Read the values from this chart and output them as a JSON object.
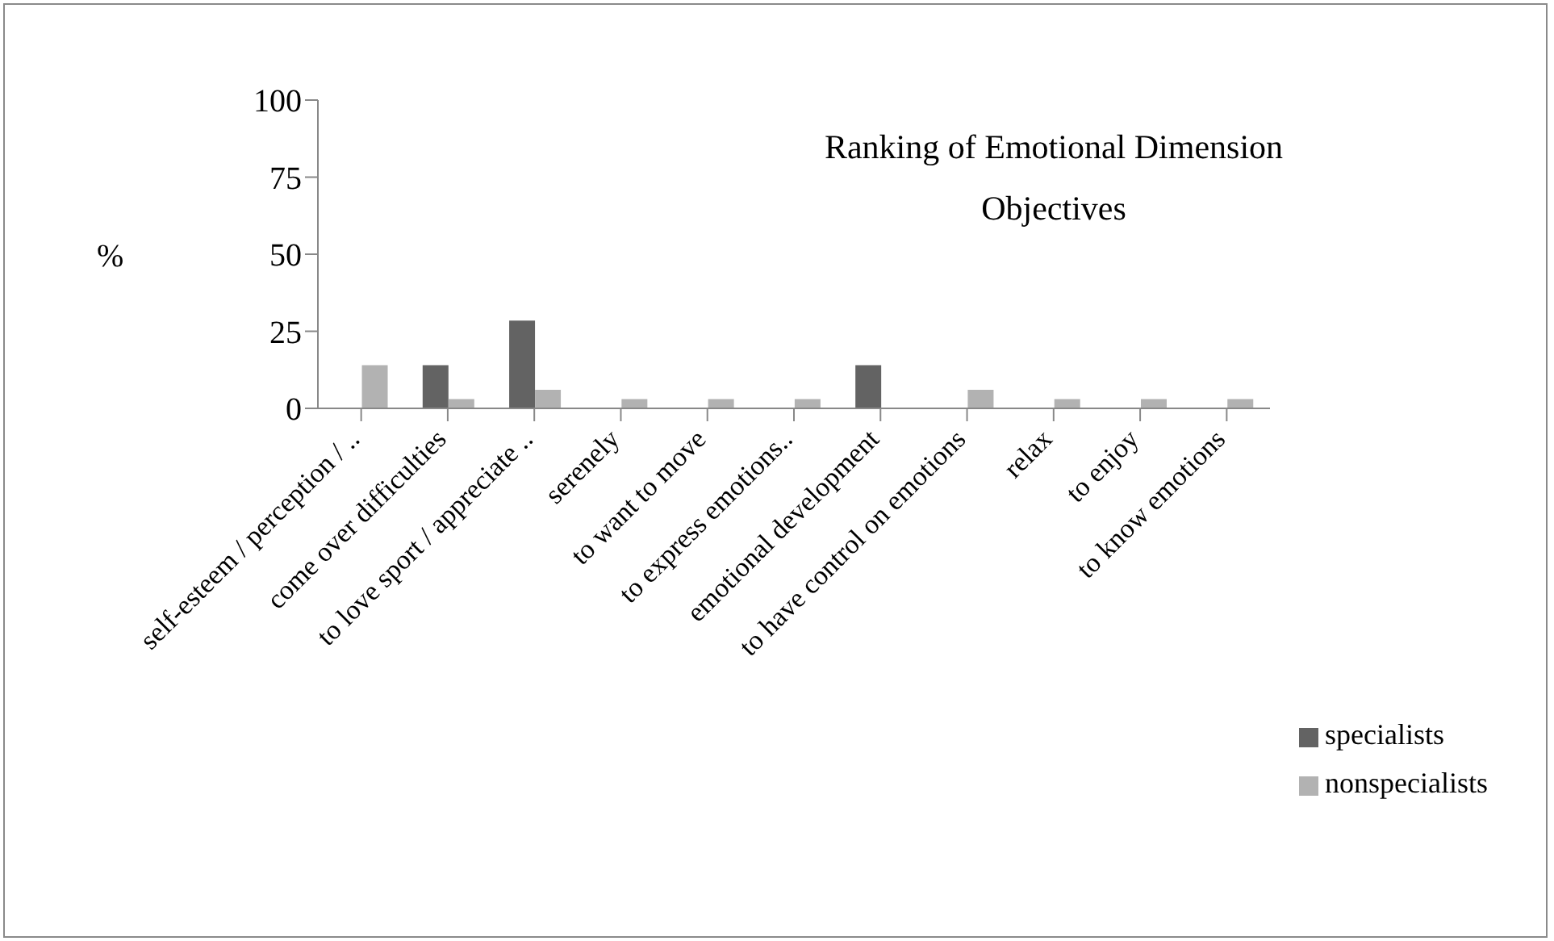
{
  "chart_data": {
    "type": "bar",
    "title": "Ranking of Emotional Dimension Objectives",
    "ylabel": "%",
    "categories": [
      "self-esteem / perception / ..",
      "come over difficulties",
      "to love sport / appreciate ..",
      "serenely",
      "to want to move",
      "to express emotions..",
      "emotional development",
      "to have control on emotions",
      "relax",
      "to enjoy",
      "to know emotions"
    ],
    "series": [
      {
        "name": "specialists",
        "color": "#636363",
        "values": [
          0,
          14,
          28.5,
          0,
          0,
          0,
          14,
          0,
          0,
          0,
          0
        ]
      },
      {
        "name": "nonspecialists",
        "color": "#b2b2b2",
        "values": [
          14,
          3,
          6,
          3,
          3,
          3,
          0,
          6,
          3,
          3,
          3
        ]
      }
    ],
    "ylim": [
      0,
      100
    ],
    "yticks": [
      0,
      25,
      50,
      75,
      100
    ],
    "grid": false,
    "legend": "bottom right"
  }
}
